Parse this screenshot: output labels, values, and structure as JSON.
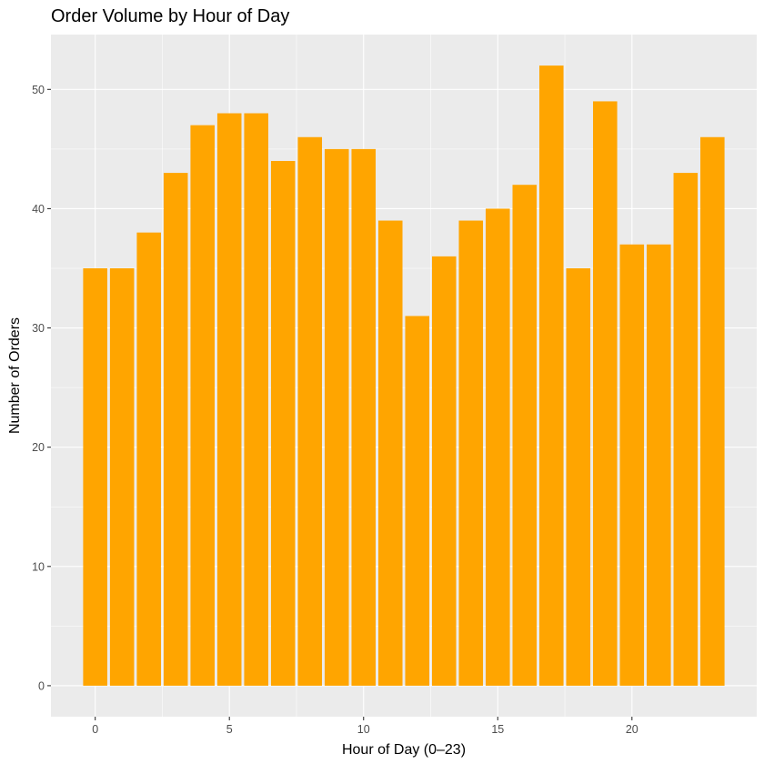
{
  "chart_data": {
    "type": "bar",
    "title": "Order Volume by Hour of Day",
    "xlabel": "Hour of Day (0–23)",
    "ylabel": "Number of Orders",
    "x": [
      0,
      1,
      2,
      3,
      4,
      5,
      6,
      7,
      8,
      9,
      10,
      11,
      12,
      13,
      14,
      15,
      16,
      17,
      18,
      19,
      20,
      21,
      22,
      23
    ],
    "values": [
      35,
      35,
      38,
      43,
      47,
      48,
      48,
      44,
      46,
      45,
      45,
      39,
      31,
      36,
      39,
      40,
      42,
      52,
      35,
      49,
      37,
      37,
      43,
      46
    ],
    "xlim": [
      -1.65,
      24.65
    ],
    "ylim": [
      -2.6,
      54.6
    ],
    "x_ticks": [
      0,
      5,
      10,
      15,
      20
    ],
    "y_ticks": [
      0,
      10,
      20,
      30,
      40,
      50
    ],
    "bar_color": "#FFA500",
    "panel_background": "#EBEBEB",
    "grid_color": "#FFFFFF",
    "grid": true
  }
}
